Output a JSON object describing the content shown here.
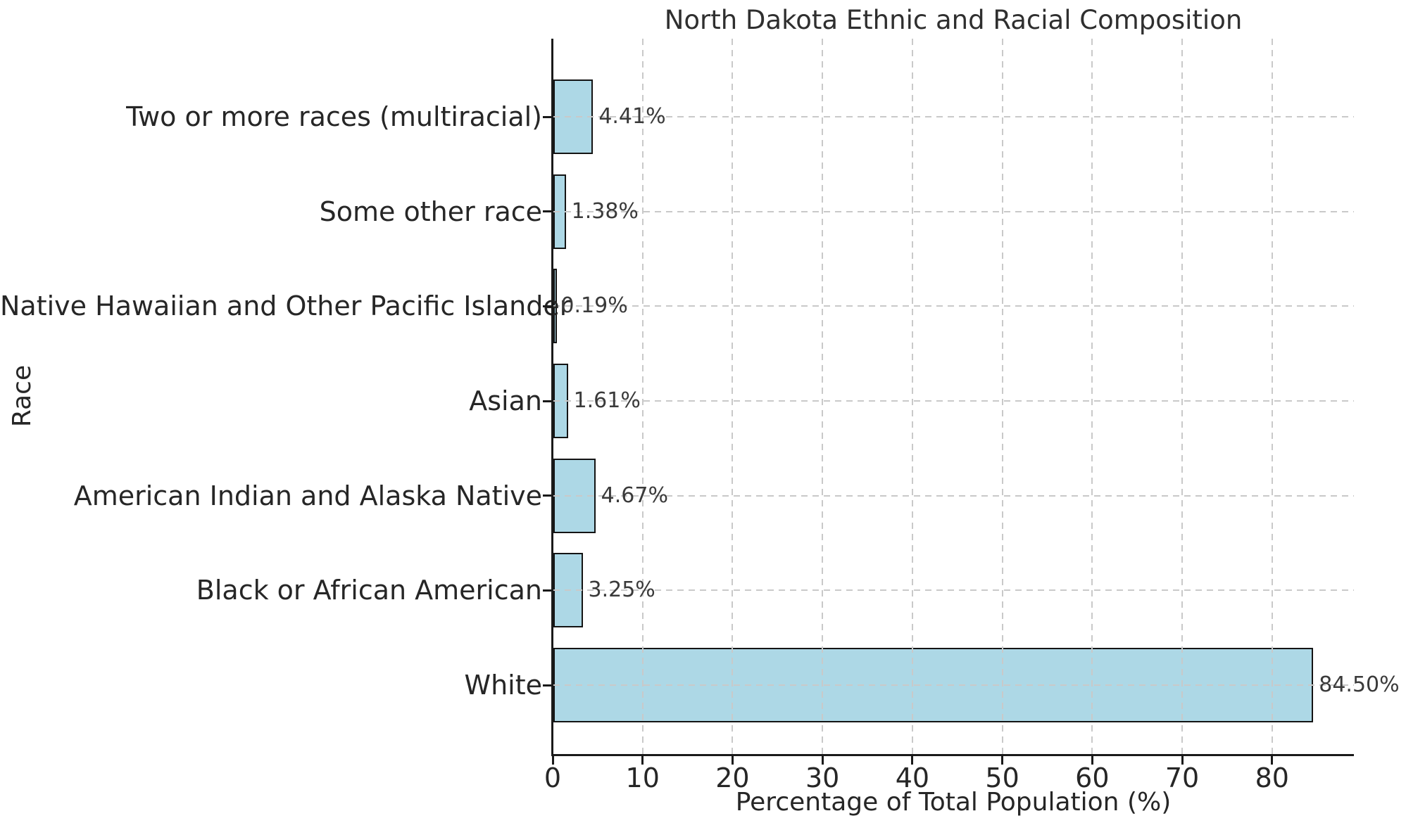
{
  "chart_data": {
    "type": "bar",
    "orientation": "horizontal",
    "title": "North Dakota Ethnic and Racial Composition",
    "xlabel": "Percentage of Total Population (%)",
    "ylabel": "Race",
    "categories": [
      "Two or more races (multiracial)",
      "Some other race",
      "Native Hawaiian and Other Pacific Islander",
      "Asian",
      "American Indian and Alaska Native",
      "Black or African American",
      "White"
    ],
    "values": [
      4.41,
      1.38,
      0.19,
      1.61,
      4.67,
      3.25,
      84.5
    ],
    "value_labels": [
      "4.41%",
      "1.38%",
      "0.19%",
      "1.61%",
      "4.67%",
      "3.25%",
      "84.50%"
    ],
    "x_ticks": [
      0,
      10,
      20,
      30,
      40,
      50,
      60,
      70,
      80
    ],
    "xlim": [
      0,
      89.1
    ],
    "grid": true,
    "grid_style": "dashed",
    "legend": "none",
    "bar_color": "#ADD8E6",
    "bar_edge_color": "#141414",
    "grid_color": "#c9c9c9",
    "text_color": "#262626"
  }
}
